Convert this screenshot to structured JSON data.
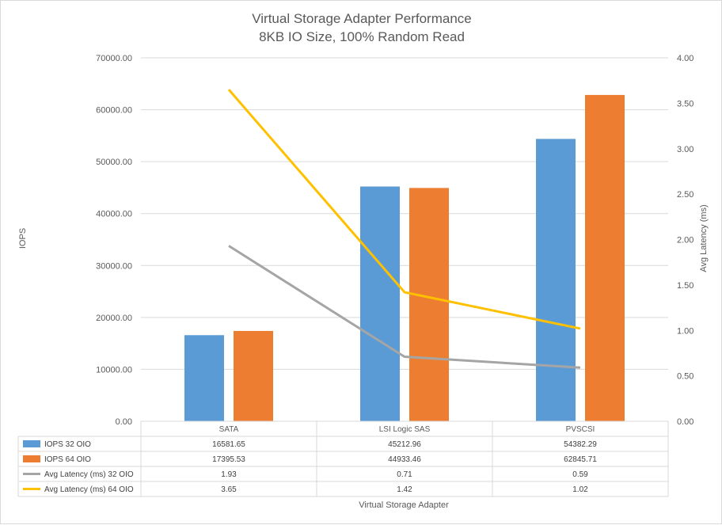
{
  "chart_data": {
    "type": "bar",
    "title": "Virtual Storage Adapter Performance",
    "subtitle": "8KB IO Size, 100% Random Read",
    "xlabel": "Virtual Storage Adapter",
    "ylabel": "IOPS",
    "y2label": "Avg Latency (ms)",
    "ylim": [
      0,
      70000
    ],
    "y2lim": [
      0,
      4
    ],
    "y_ticks": [
      "0.00",
      "10000.00",
      "20000.00",
      "30000.00",
      "40000.00",
      "50000.00",
      "60000.00",
      "70000.00"
    ],
    "y2_ticks": [
      "0.00",
      "0.50",
      "1.00",
      "1.50",
      "2.00",
      "2.50",
      "3.00",
      "3.50",
      "4.00"
    ],
    "categories": [
      "SATA",
      "LSI Logic SAS",
      "PVSCSI"
    ],
    "grid": true,
    "legend": "data-table",
    "series": [
      {
        "name": "IOPS 32 OIO",
        "kind": "bar",
        "axis": "left",
        "color": "#5b9bd5",
        "values": [
          16581.65,
          45212.96,
          54382.29
        ],
        "labels": [
          "16581.65",
          "45212.96",
          "54382.29"
        ]
      },
      {
        "name": "IOPS 64 OIO",
        "kind": "bar",
        "axis": "left",
        "color": "#ed7d31",
        "values": [
          17395.53,
          44933.46,
          62845.71
        ],
        "labels": [
          "17395.53",
          "44933.46",
          "62845.71"
        ]
      },
      {
        "name": "Avg Latency (ms) 32 OIO",
        "kind": "line",
        "axis": "right",
        "color": "#a5a5a5",
        "values": [
          1.93,
          0.71,
          0.59
        ],
        "labels": [
          "1.93",
          "0.71",
          "0.59"
        ]
      },
      {
        "name": "Avg Latency (ms) 64 OIO",
        "kind": "line",
        "axis": "right",
        "color": "#ffc000",
        "values": [
          3.65,
          1.42,
          1.02
        ],
        "labels": [
          "3.65",
          "1.42",
          "1.02"
        ]
      }
    ]
  }
}
